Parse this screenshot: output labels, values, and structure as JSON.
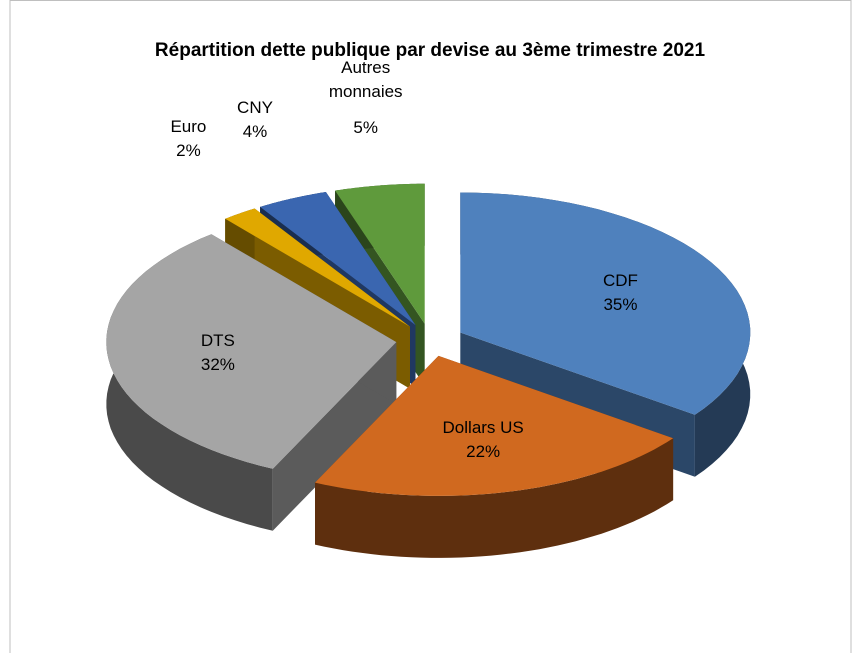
{
  "chart_data": {
    "type": "pie3d",
    "title": "Répartition dette publique par devise au 3ème trimestre 2021",
    "categories": [
      "CDF",
      "Dollars US",
      "DTS",
      "Euro",
      "CNY",
      "Autres monnaies"
    ],
    "values": [
      35,
      22,
      32,
      2,
      4,
      5
    ],
    "value_labels": [
      "35%",
      "22%",
      "32%",
      "2%",
      "4%",
      "5%"
    ],
    "colors": [
      "#4f81bd",
      "#d0691f",
      "#a5a5a5",
      "#e0a800",
      "#3a66b0",
      "#5f9a3c"
    ]
  }
}
